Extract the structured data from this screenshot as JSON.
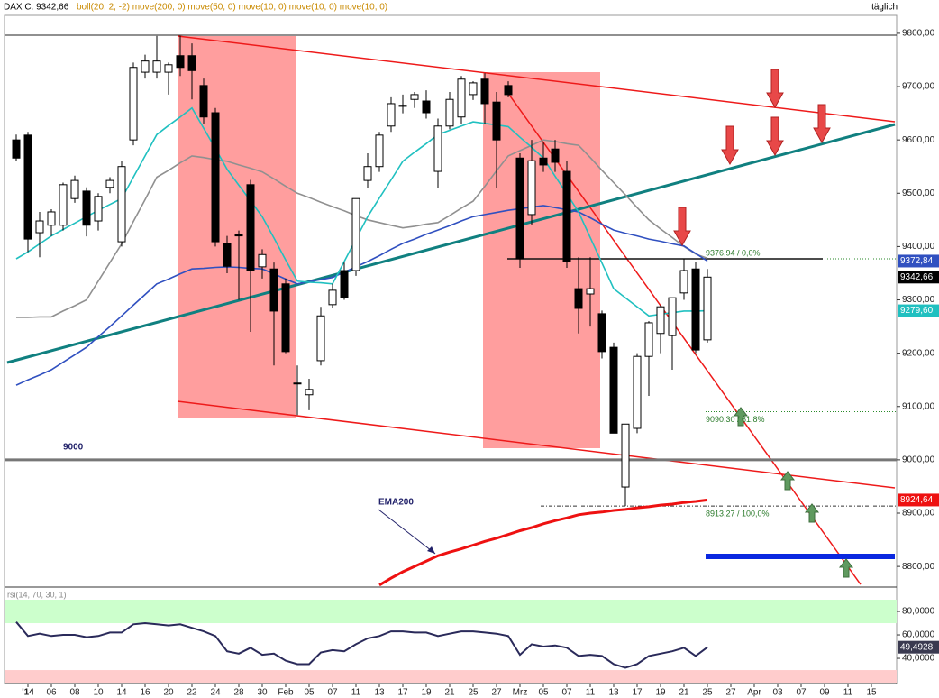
{
  "chart_data": [
    {
      "type": "candlestick",
      "title": "DAX C: 9342,66",
      "subtitle": "boll(20, 2, -2) move(200, 0) move(50, 0) move(10, 0) move(10, 0) move(10, 0)",
      "period": "täglich",
      "last_label": "9342,66",
      "categories": [
        null,
        "'14",
        null,
        "06",
        null,
        "08",
        null,
        "10",
        null,
        "14",
        null,
        "16",
        null,
        "20",
        null,
        "22",
        null,
        "24",
        null,
        "28",
        null,
        "30",
        null,
        "Feb",
        null,
        "05",
        null,
        "07",
        null,
        "11",
        null,
        "13",
        null,
        "17",
        null,
        "19",
        null,
        "21",
        null,
        "25",
        null,
        "27",
        null,
        "Mrz",
        null,
        "05",
        null,
        "07",
        null,
        "11",
        null,
        "13",
        null,
        "17",
        null,
        "19",
        null,
        "21",
        null,
        "25",
        null,
        "27",
        null,
        "Apr",
        null,
        "03",
        null,
        "07",
        null,
        "09",
        null,
        "11",
        null,
        "15",
        null
      ],
      "open": [
        9600,
        9609,
        9426,
        9440,
        9440,
        9490,
        9504,
        9448,
        9511,
        9409,
        9600,
        9727,
        9727,
        9727,
        9758,
        9758,
        9702,
        9651,
        9406,
        9423,
        9516,
        9362,
        9358,
        9330,
        9144,
        9122,
        9186,
        9291,
        9355,
        9355,
        9524,
        9550,
        9626,
        9663,
        9676,
        9673,
        9541,
        9626,
        9643,
        9685,
        9714,
        9671,
        9702,
        9566,
        9460,
        9566,
        9583,
        9541,
        9321,
        9311,
        9274,
        9211,
        8949,
        9059,
        9194,
        9237,
        9233,
        9313,
        9358,
        9225,
        null,
        null,
        null,
        null,
        null,
        null,
        null,
        null,
        null,
        null,
        null,
        null,
        null,
        null,
        null
      ],
      "high": [
        9610,
        9615,
        9465,
        9470,
        9520,
        9533,
        9511,
        9500,
        9530,
        9560,
        9745,
        9760,
        9795,
        9745,
        9795,
        9781,
        9715,
        9660,
        9420,
        9430,
        9525,
        9395,
        9370,
        9340,
        9177,
        9152,
        9287,
        9330,
        9370,
        9490,
        9575,
        9615,
        9680,
        9685,
        9690,
        9693,
        9640,
        9690,
        9720,
        9710,
        9725,
        9690,
        9710,
        9575,
        9600,
        9595,
        9600,
        9560,
        9380,
        9380,
        9280,
        9220,
        9067,
        9200,
        9260,
        9290,
        9304,
        9376.94,
        9372,
        9358,
        null,
        null,
        null,
        null,
        null,
        null,
        null,
        null,
        null,
        null,
        null,
        null,
        null,
        null,
        null
      ],
      "low": [
        9560,
        9390,
        9380,
        9420,
        9430,
        9482,
        9419,
        9430,
        9500,
        9400,
        9590,
        9715,
        9715,
        9685,
        9720,
        9676,
        9630,
        9400,
        9350,
        9300,
        9240,
        9340,
        9177,
        9200,
        9084,
        9093,
        9177,
        9285,
        9300,
        9345,
        9510,
        9540,
        9615,
        9650,
        9660,
        9640,
        9510,
        9620,
        9630,
        9675,
        9630,
        9510,
        9680,
        9360,
        9440,
        9540,
        9540,
        9360,
        9237,
        9250,
        9190,
        9050,
        8913.27,
        9050,
        9120,
        9200,
        9169,
        9300,
        9200,
        9220,
        null,
        null,
        null,
        null,
        null,
        null,
        null,
        null,
        null,
        null,
        null,
        null,
        null,
        null,
        null
      ],
      "close": [
        9566,
        9414,
        9448,
        9465,
        9516,
        9524,
        9440,
        9494,
        9524,
        9550,
        9736,
        9748,
        9748,
        9741,
        9736,
        9730,
        9643,
        9409,
        9363,
        9420,
        9355,
        9385,
        9279,
        9203,
        9144,
        9132,
        9270,
        9318,
        9304,
        9490,
        9550,
        9609,
        9668,
        9665,
        9685,
        9651,
        9626,
        9676,
        9714,
        9707,
        9668,
        9600,
        9685,
        9377,
        9561,
        9553,
        9558,
        9372,
        9284,
        9321,
        9203,
        9050,
        9067,
        9194,
        9257,
        9287,
        9304,
        9355,
        9206,
        9342.66,
        null,
        null,
        null,
        null,
        null,
        null,
        null,
        null,
        null,
        null,
        null,
        null,
        null,
        null,
        null
      ],
      "series": [
        {
          "color": "#909090",
          "values": [
            9267,
            9267,
            9268,
            9268,
            9279,
            9289,
            9300,
            9335,
            9370,
            9405,
            9447,
            9488,
            9530,
            9543,
            9557,
            9570,
            9567,
            9563,
            9560,
            9553,
            9547,
            9540,
            9527,
            9513,
            9500,
            9492,
            9483,
            9475,
            9467,
            9458,
            9450,
            9445,
            9440,
            9435,
            9438,
            9442,
            9445,
            9458,
            9472,
            9485,
            9513,
            9542,
            9570,
            9580,
            9590,
            9600,
            9597,
            9593,
            9590,
            9567,
            9543,
            9520,
            9497,
            9473,
            9450,
            9433,
            9417,
            9400,
            9386,
            9378,
            null,
            null,
            null,
            null,
            null,
            null,
            null,
            null,
            null,
            null,
            null,
            null,
            null,
            null,
            null
          ]
        },
        {
          "color": "#3050c0",
          "last_label": "9372,84",
          "values": [
            9140,
            9150,
            9159,
            9169,
            9183,
            9197,
            9211,
            9231,
            9250,
            9270,
            9290,
            9310,
            9330,
            9339,
            9349,
            9358,
            9359,
            9361,
            9362,
            9361,
            9359,
            9358,
            9349,
            9339,
            9330,
            9334,
            9338,
            9342,
            9352,
            9362,
            9372,
            9383,
            9395,
            9406,
            9414,
            9423,
            9431,
            9439,
            9448,
            9456,
            9460,
            9464,
            9468,
            9471,
            9474,
            9477,
            9473,
            9469,
            9465,
            9454,
            9442,
            9431,
            9425,
            9420,
            9414,
            9410,
            9405,
            9401,
            9387,
            9372.84,
            null,
            null,
            null,
            null,
            null,
            null,
            null,
            null,
            null,
            null,
            null,
            null,
            null,
            null,
            null
          ]
        },
        {
          "color": "#20c0c0",
          "last_label": "9279,60",
          "values": [
            9377,
            9390,
            9405,
            9420,
            9432,
            9444,
            9456,
            9468,
            9479,
            9490,
            9530,
            9570,
            9610,
            9627,
            9643,
            9660,
            9622,
            9584,
            9545,
            9515,
            9486,
            9456,
            9416,
            9375,
            9335,
            9333,
            9332,
            9330,
            9372,
            9414,
            9456,
            9491,
            9525,
            9560,
            9577,
            9593,
            9610,
            9618,
            9626,
            9634,
            9631,
            9628,
            9625,
            9605,
            9586,
            9566,
            9532,
            9499,
            9465,
            9417,
            9369,
            9321,
            9304,
            9287,
            9270,
            9273,
            9276,
            9279,
            9279,
            9279.6,
            null,
            null,
            null,
            null,
            null,
            null,
            null,
            null,
            null,
            null,
            null,
            null,
            null,
            null,
            null
          ]
        },
        {
          "color": "#ee1111",
          "last_label": "8924,64",
          "values": [
            null,
            null,
            null,
            null,
            null,
            null,
            null,
            null,
            null,
            null,
            null,
            null,
            null,
            null,
            null,
            null,
            null,
            null,
            null,
            null,
            null,
            null,
            null,
            null,
            null,
            null,
            null,
            null,
            null,
            null,
            null,
            8765,
            8778,
            8790,
            8800,
            8810,
            8820,
            8827,
            8833,
            8840,
            8847,
            8853,
            8860,
            8867,
            8873,
            8880,
            8886,
            8891,
            8897,
            8900,
            8902,
            8905,
            8907,
            8910,
            8912,
            8915,
            8917,
            8920,
            8922,
            8924.64,
            null,
            null,
            null,
            null,
            null,
            null,
            null,
            null,
            null,
            null,
            null,
            null,
            null,
            null,
            null
          ]
        }
      ],
      "support": {
        "value": 9000,
        "label": "9000"
      },
      "ema_note": "EMA200",
      "levels": [
        {
          "value": 9376.94,
          "label": "9376,94 / 0,0%"
        },
        {
          "value": 9090.3,
          "label": "9090,30 / 61,8%"
        },
        {
          "value": 8913.27,
          "label": "8913,27 / 100,0%"
        }
      ],
      "ylim": [
        8763,
        9832
      ],
      "yticks": [
        {
          "value": 9800,
          "label": "9800,00"
        },
        {
          "value": 9700,
          "label": "9700,00"
        },
        {
          "value": 9600,
          "label": "9600,00"
        },
        {
          "value": 9500,
          "label": "9500,00"
        },
        {
          "value": 9400,
          "label": "9400,00"
        },
        {
          "value": 9300,
          "label": "9300,00"
        },
        {
          "value": 9200,
          "label": "9200,00"
        },
        {
          "value": 9100,
          "label": "9100,00"
        },
        {
          "value": 9000,
          "label": "9000,00"
        },
        {
          "value": 8900,
          "label": "8900,00"
        },
        {
          "value": 8800,
          "label": "8800,00"
        }
      ]
    },
    {
      "type": "line",
      "title": "rsi(14, 70, 30, 1)",
      "overbought": 70,
      "oversold": 30,
      "color": "#2a2a5a",
      "last_label": "49,4928",
      "values": [
        71,
        59,
        61,
        59,
        60,
        60,
        58,
        59,
        62,
        62,
        69,
        70,
        69,
        68,
        69,
        66,
        63,
        59,
        46,
        44,
        49,
        43,
        44,
        38,
        35,
        35,
        45,
        47,
        46,
        52,
        57,
        59,
        63,
        63,
        62,
        62,
        59,
        61,
        63,
        63,
        62,
        61,
        59,
        43,
        52,
        50,
        51,
        49,
        42,
        43,
        42,
        35,
        32,
        35,
        42,
        44,
        46,
        49,
        42,
        49.4928,
        null,
        null,
        null,
        null,
        null,
        null,
        null,
        null,
        null,
        null,
        null,
        null,
        null,
        null,
        null
      ],
      "ylim": [
        18.5,
        97.7
      ],
      "yticks": [
        {
          "value": 80,
          "label": "80,0000"
        },
        {
          "value": 60,
          "label": "60,0000"
        },
        {
          "value": 40,
          "label": "40,0000"
        }
      ]
    }
  ]
}
